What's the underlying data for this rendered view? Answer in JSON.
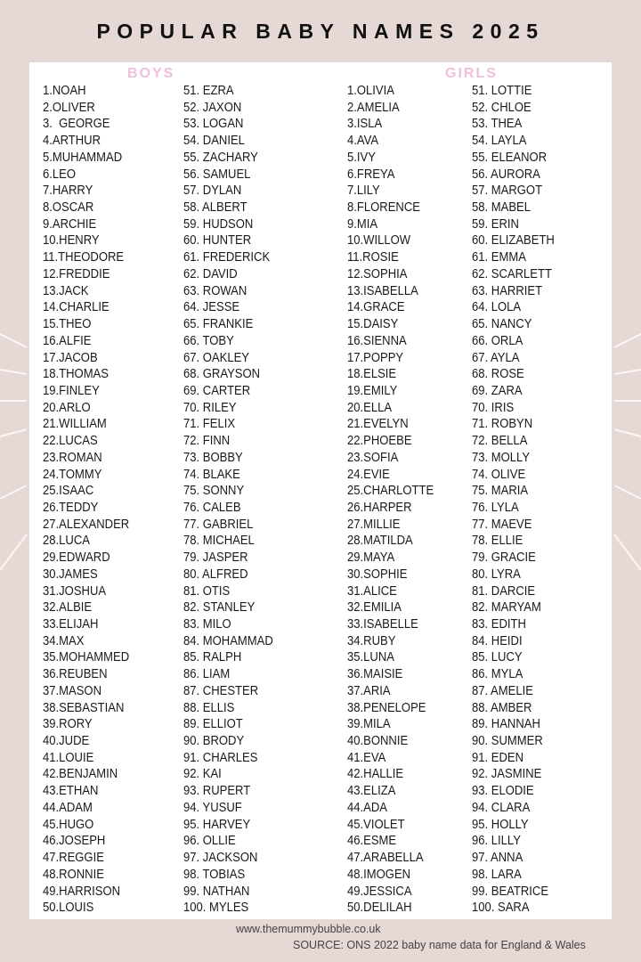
{
  "title": "POPULAR BABY NAMES 2025",
  "colors": {
    "background": "#e6d8d4",
    "panel": "#ffffff",
    "heading_pink": "#f1bfdc"
  },
  "boys": {
    "heading": "BOYS",
    "col1": [
      "1.NOAH",
      "2.OLIVER",
      "3.  GEORGE",
      "4.ARTHUR",
      "5.MUHAMMAD",
      "6.LEO",
      "7.HARRY",
      "8.OSCAR",
      "9.ARCHIE",
      "10.HENRY",
      "11.THEODORE",
      "12.FREDDIE",
      "13.JACK",
      "14.CHARLIE",
      "15.THEO",
      "16.ALFIE",
      "17.JACOB",
      "18.THOMAS",
      "19.FINLEY",
      "20.ARLO",
      "21.WILLIAM",
      "22.LUCAS",
      "23.ROMAN",
      "24.TOMMY",
      "25.ISAAC",
      "26.TEDDY",
      "27.ALEXANDER",
      "28.LUCA",
      "29.EDWARD",
      "30.JAMES",
      "31.JOSHUA",
      "32.ALBIE",
      "33.ELIJAH",
      "34.MAX",
      "35.MOHAMMED",
      "36.REUBEN",
      "37.MASON",
      "38.SEBASTIAN",
      "39.RORY",
      "40.JUDE",
      "41.LOUIE",
      "42.BENJAMIN",
      "43.ETHAN",
      "44.ADAM",
      "45.HUGO",
      "46.JOSEPH",
      "47.REGGIE",
      "48.RONNIE",
      "49.HARRISON",
      "50.LOUIS"
    ],
    "col2": [
      "51. EZRA",
      "52. JAXON",
      "53. LOGAN",
      "54. DANIEL",
      "55. ZACHARY",
      "56. SAMUEL",
      "57. DYLAN",
      "58. ALBERT",
      "59. HUDSON",
      "60. HUNTER",
      "61. FREDERICK",
      "62. DAVID",
      "63. ROWAN",
      "64. JESSE",
      "65. FRANKIE",
      "66. TOBY",
      "67. OAKLEY",
      "68. GRAYSON",
      "69. CARTER",
      "70. RILEY",
      "71. FELIX",
      "72. FINN",
      "73. BOBBY",
      "74. BLAKE",
      "75. SONNY",
      "76. CALEB",
      "77. GABRIEL",
      "78. MICHAEL",
      "79. JASPER",
      "80. ALFRED",
      "81. OTIS",
      "82. STANLEY",
      "83. MILO",
      "84. MOHAMMAD",
      "85. RALPH",
      "86. LIAM",
      "87. CHESTER",
      "88. ELLIS",
      "89. ELLIOT",
      "90. BRODY",
      "91. CHARLES",
      "92. KAI",
      "93. RUPERT",
      "94. YUSUF",
      "95. HARVEY",
      "96. OLLIE",
      "97. JACKSON",
      "98. TOBIAS",
      "99. NATHAN",
      "100. MYLES"
    ]
  },
  "girls": {
    "heading": "GIRLS",
    "col1": [
      "1.OLIVIA",
      "2.AMELIA",
      "3.ISLA",
      "4.AVA",
      "5.IVY",
      "6.FREYA",
      "7.LILY",
      "8.FLORENCE",
      "9.MIA",
      "10.WILLOW",
      "11.ROSIE",
      "12.SOPHIA",
      "13.ISABELLA",
      "14.GRACE",
      "15.DAISY",
      "16.SIENNA",
      "17.POPPY",
      "18.ELSIE",
      "19.EMILY",
      "20.ELLA",
      "21.EVELYN",
      "22.PHOEBE",
      "23.SOFIA",
      "24.EVIE",
      "25.CHARLOTTE",
      "26.HARPER",
      "27.MILLIE",
      "28.MATILDA",
      "29.MAYA",
      "30.SOPHIE",
      "31.ALICE",
      "32.EMILIA",
      "33.ISABELLE",
      "34.RUBY",
      "35.LUNA",
      "36.MAISIE",
      "37.ARIA",
      "38.PENELOPE",
      "39.MILA",
      "40.BONNIE",
      "41.EVA",
      "42.HALLIE",
      "43.ELIZA",
      "44.ADA",
      "45.VIOLET",
      "46.ESME",
      "47.ARABELLA",
      "48.IMOGEN",
      "49.JESSICA",
      "50.DELILAH"
    ],
    "col2": [
      "51. LOTTIE",
      "52. CHLOE",
      "53. THEA",
      "54. LAYLA",
      "55. ELEANOR",
      "56. AURORA",
      "57. MARGOT",
      "58. MABEL",
      "59. ERIN",
      "60. ELIZABETH",
      "61. EMMA",
      "62. SCARLETT",
      "63. HARRIET",
      "64. LOLA",
      "65. NANCY",
      "66. ORLA",
      "67. AYLA",
      "68. ROSE",
      "69. ZARA",
      "70. IRIS",
      "71. ROBYN",
      "72. BELLA",
      "73. MOLLY",
      "74. OLIVE",
      "75. MARIA",
      "76. LYLA",
      "77. MAEVE",
      "78. ELLIE",
      "79. GRACIE",
      "80. LYRA",
      "81. DARCIE",
      "82. MARYAM",
      "83. EDITH",
      "84. HEIDI",
      "85. LUCY",
      "86. MYLA",
      "87. AMELIE",
      "88. AMBER",
      "89. HANNAH",
      "90. SUMMER",
      "91. EDEN",
      "92. JASMINE",
      "93. ELODIE",
      "94. CLARA",
      "95. HOLLY",
      "96. LILLY",
      "97. ANNA",
      "98. LARA",
      "99. BEATRICE",
      "100. SARA"
    ]
  },
  "footer": {
    "website": "www.themummybubble.co.uk",
    "source": "SOURCE: ONS 2022 baby name data for England & Wales"
  }
}
